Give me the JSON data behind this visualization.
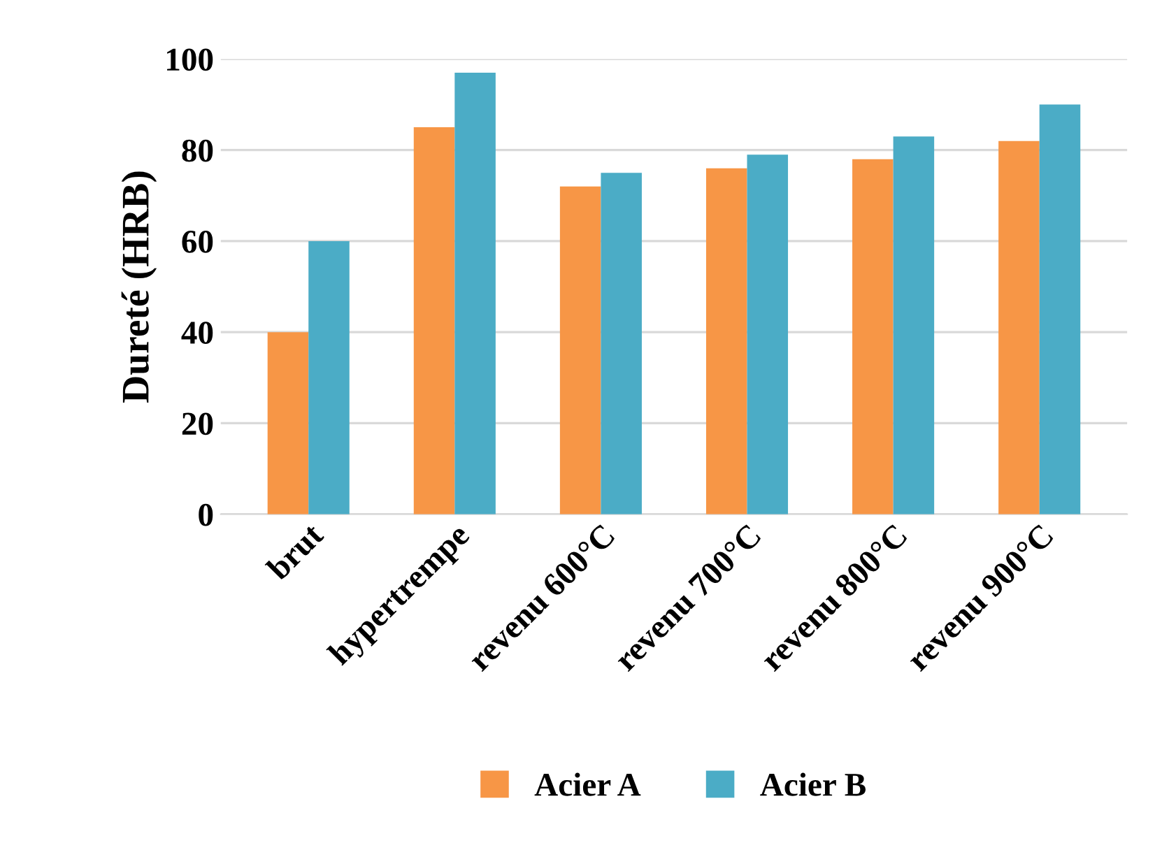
{
  "chart_data": {
    "type": "bar",
    "ylabel": "Dureté (HRB)",
    "categories": [
      "brut",
      "hypertrempe",
      "revenu 600°C",
      "revenu 700°C",
      "revenu 800°C",
      "revenu 900°C"
    ],
    "series": [
      {
        "name": "Acier A",
        "color": "#f79646",
        "values": [
          40,
          85,
          72,
          76,
          78,
          82
        ]
      },
      {
        "name": "Acier B",
        "color": "#4bacc6",
        "values": [
          60,
          97,
          75,
          79,
          83,
          90
        ]
      }
    ],
    "ylim": [
      0,
      100
    ],
    "yticks": [
      0,
      20,
      40,
      60,
      80,
      100
    ],
    "grid": "y",
    "legend": "bottom"
  }
}
